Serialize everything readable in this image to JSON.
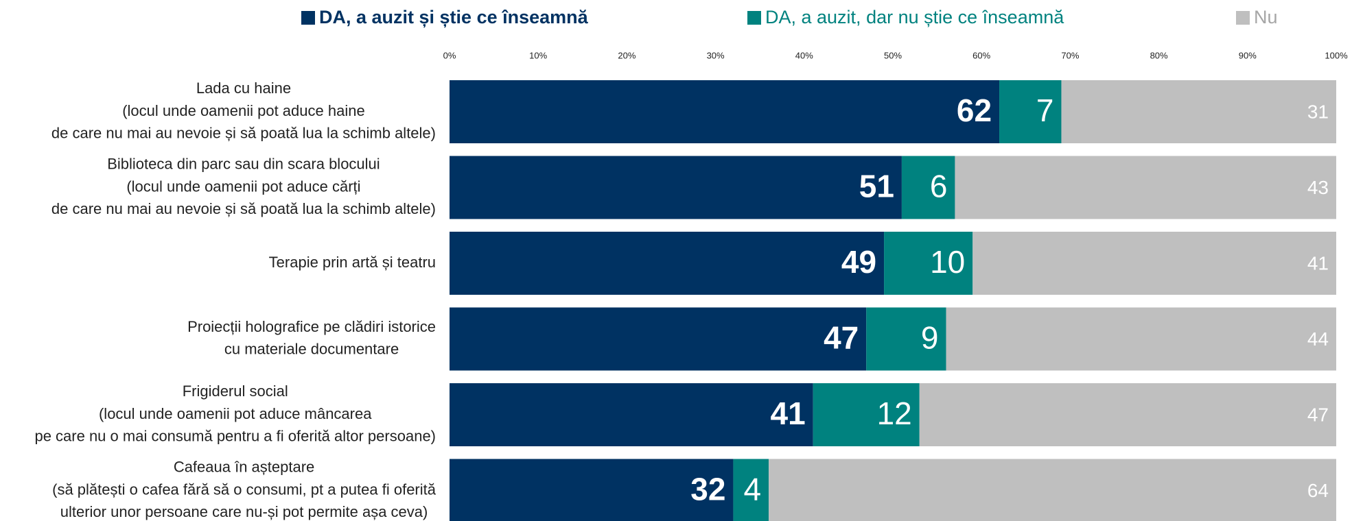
{
  "chart_data": {
    "type": "stacked-bar-horizontal",
    "categories": [
      [
        "Lada cu haine",
        "(locul unde oamenii pot aduce haine",
        "de care nu mai au nevoie și să poată lua la schimb altele)"
      ],
      [
        "Biblioteca din parc sau din scara blocului",
        "(locul unde oamenii pot aduce cărți",
        "de care nu mai au nevoie și să poată lua la schimb altele)"
      ],
      [
        "Terapie prin artă și teatru"
      ],
      [
        "Proiecții holografice pe clădiri istorice",
        "cu materiale documentare"
      ],
      [
        "Frigiderul social",
        "(locul unde oamenii pot aduce mâncarea",
        "pe care nu o mai consumă pentru a fi oferită altor persoane)"
      ],
      [
        "Cafeaua în așteptare",
        "(să plătești o cafea fără să o consumi, pt a putea fi oferită",
        "ulterior unor persoane care nu-și pot permite așa ceva)"
      ]
    ],
    "series": [
      {
        "name": "DA, a auzit și știe ce înseamnă",
        "color": "#003262",
        "values": [
          62,
          51,
          49,
          47,
          41,
          32
        ]
      },
      {
        "name": "DA, a auzit, dar nu știe ce înseamnă",
        "color": "#00827f",
        "values": [
          7,
          6,
          10,
          9,
          12,
          4
        ]
      },
      {
        "name": "Nu",
        "color": "#bfbfbf",
        "values": [
          31,
          43,
          41,
          44,
          47,
          64
        ]
      }
    ],
    "xlim": [
      0,
      100
    ],
    "xticks": [
      {
        "value": 0,
        "label": "0%"
      },
      {
        "value": 10,
        "label": "10%"
      },
      {
        "value": 20,
        "label": "20%"
      },
      {
        "value": 30,
        "label": "30%"
      },
      {
        "value": 40,
        "label": "40%"
      },
      {
        "value": 50,
        "label": "50%"
      },
      {
        "value": 60,
        "label": "60%"
      },
      {
        "value": 70,
        "label": "70%"
      },
      {
        "value": 80,
        "label": "80%"
      },
      {
        "value": 90,
        "label": "90%"
      },
      {
        "value": 100,
        "label": "100%"
      }
    ],
    "legend": "top"
  }
}
